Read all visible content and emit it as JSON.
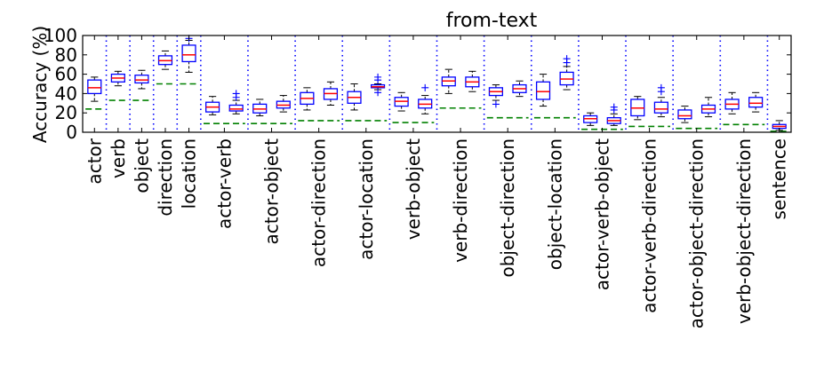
{
  "chart_data": {
    "type": "box",
    "title": "from-text",
    "xlabel": "",
    "ylabel": "Accuracy (%)",
    "ylim": [
      0,
      100
    ],
    "yticks": [
      0,
      20,
      40,
      60,
      80,
      100
    ],
    "grid": false,
    "legend": "none",
    "colors": {
      "box": "#0000ff",
      "median": "#ff0000",
      "whisker": "#000000",
      "flier": "#0000ff",
      "baseline": "#008000",
      "separator": "#0000ff"
    },
    "groups": [
      {
        "label": "actor",
        "baseline": 24,
        "boxes": [
          {
            "q1": 40,
            "median": 46,
            "q3": 54,
            "whislo": 32,
            "whishi": 57,
            "fliers": []
          }
        ]
      },
      {
        "label": "verb",
        "baseline": 33,
        "boxes": [
          {
            "q1": 52,
            "median": 56,
            "q3": 60,
            "whislo": 48,
            "whishi": 63,
            "fliers": []
          }
        ]
      },
      {
        "label": "object",
        "baseline": 33,
        "boxes": [
          {
            "q1": 51,
            "median": 54,
            "q3": 59,
            "whislo": 45,
            "whishi": 64,
            "fliers": []
          }
        ]
      },
      {
        "label": "direction",
        "baseline": 50,
        "boxes": [
          {
            "q1": 70,
            "median": 74,
            "q3": 79,
            "whislo": 65,
            "whishi": 84,
            "fliers": []
          }
        ]
      },
      {
        "label": "location",
        "baseline": 50,
        "boxes": [
          {
            "q1": 73,
            "median": 80,
            "q3": 90,
            "whislo": 62,
            "whishi": 95,
            "fliers": [
              97
            ]
          }
        ]
      },
      {
        "label": "actor-verb",
        "baseline": 9,
        "boxes": [
          {
            "q1": 21,
            "median": 26,
            "q3": 31,
            "whislo": 18,
            "whishi": 37,
            "fliers": []
          },
          {
            "q1": 22,
            "median": 24,
            "q3": 28,
            "whislo": 19,
            "whishi": 33,
            "fliers": [
              36,
              40
            ]
          }
        ]
      },
      {
        "label": "actor-object",
        "baseline": 9,
        "boxes": [
          {
            "q1": 20,
            "median": 24,
            "q3": 29,
            "whislo": 17,
            "whishi": 34,
            "fliers": []
          },
          {
            "q1": 25,
            "median": 28,
            "q3": 32,
            "whislo": 21,
            "whishi": 38,
            "fliers": []
          }
        ]
      },
      {
        "label": "actor-direction",
        "baseline": 12,
        "boxes": [
          {
            "q1": 29,
            "median": 35,
            "q3": 41,
            "whislo": 23,
            "whishi": 46,
            "fliers": []
          },
          {
            "q1": 34,
            "median": 40,
            "q3": 45,
            "whislo": 28,
            "whishi": 52,
            "fliers": []
          }
        ]
      },
      {
        "label": "actor-location",
        "baseline": 12,
        "boxes": [
          {
            "q1": 30,
            "median": 36,
            "q3": 42,
            "whislo": 23,
            "whishi": 50,
            "fliers": []
          },
          {
            "q1": 46,
            "median": 47,
            "q3": 49,
            "whislo": 44,
            "whishi": 50,
            "fliers": [
              41,
              54,
              57
            ]
          }
        ]
      },
      {
        "label": "verb-object",
        "baseline": 10,
        "boxes": [
          {
            "q1": 27,
            "median": 32,
            "q3": 36,
            "whislo": 22,
            "whishi": 41,
            "fliers": []
          },
          {
            "q1": 25,
            "median": 29,
            "q3": 34,
            "whislo": 19,
            "whishi": 38,
            "fliers": [
              46
            ]
          }
        ]
      },
      {
        "label": "verb-direction",
        "baseline": 25,
        "boxes": [
          {
            "q1": 48,
            "median": 53,
            "q3": 57,
            "whislo": 40,
            "whishi": 65,
            "fliers": []
          },
          {
            "q1": 47,
            "median": 52,
            "q3": 57,
            "whislo": 42,
            "whishi": 63,
            "fliers": []
          }
        ]
      },
      {
        "label": "object-direction",
        "baseline": 15,
        "boxes": [
          {
            "q1": 38,
            "median": 42,
            "q3": 46,
            "whislo": 33,
            "whishi": 49,
            "fliers": [
              29
            ]
          },
          {
            "q1": 41,
            "median": 45,
            "q3": 49,
            "whislo": 37,
            "whishi": 53,
            "fliers": []
          }
        ]
      },
      {
        "label": "object-location",
        "baseline": 15,
        "boxes": [
          {
            "q1": 34,
            "median": 42,
            "q3": 52,
            "whislo": 27,
            "whishi": 60,
            "fliers": []
          },
          {
            "q1": 49,
            "median": 55,
            "q3": 62,
            "whislo": 44,
            "whishi": 68,
            "fliers": [
              72,
              76
            ]
          }
        ]
      },
      {
        "label": "actor-verb-object",
        "baseline": 3,
        "boxes": [
          {
            "q1": 10,
            "median": 14,
            "q3": 17,
            "whislo": 7,
            "whishi": 20,
            "fliers": []
          },
          {
            "q1": 9,
            "median": 12,
            "q3": 15,
            "whislo": 7,
            "whishi": 19,
            "fliers": [
              23,
              26
            ]
          }
        ]
      },
      {
        "label": "actor-verb-direction",
        "baseline": 6,
        "boxes": [
          {
            "q1": 17,
            "median": 25,
            "q3": 34,
            "whislo": 13,
            "whishi": 37,
            "fliers": []
          },
          {
            "q1": 20,
            "median": 24,
            "q3": 31,
            "whislo": 16,
            "whishi": 36,
            "fliers": [
              42,
              46
            ]
          }
        ]
      },
      {
        "label": "actor-object-direction",
        "baseline": 4,
        "boxes": [
          {
            "q1": 14,
            "median": 17,
            "q3": 23,
            "whislo": 10,
            "whishi": 27,
            "fliers": []
          },
          {
            "q1": 20,
            "median": 24,
            "q3": 28,
            "whislo": 16,
            "whishi": 36,
            "fliers": []
          }
        ]
      },
      {
        "label": "verb-object-direction",
        "baseline": 8,
        "boxes": [
          {
            "q1": 24,
            "median": 29,
            "q3": 34,
            "whislo": 19,
            "whishi": 41,
            "fliers": []
          },
          {
            "q1": 26,
            "median": 30,
            "q3": 36,
            "whislo": 21,
            "whishi": 41,
            "fliers": []
          }
        ]
      },
      {
        "label": "sentence",
        "baseline": 1,
        "boxes": [
          {
            "q1": 4,
            "median": 6,
            "q3": 8,
            "whislo": 2,
            "whishi": 12,
            "fliers": []
          }
        ]
      }
    ]
  }
}
